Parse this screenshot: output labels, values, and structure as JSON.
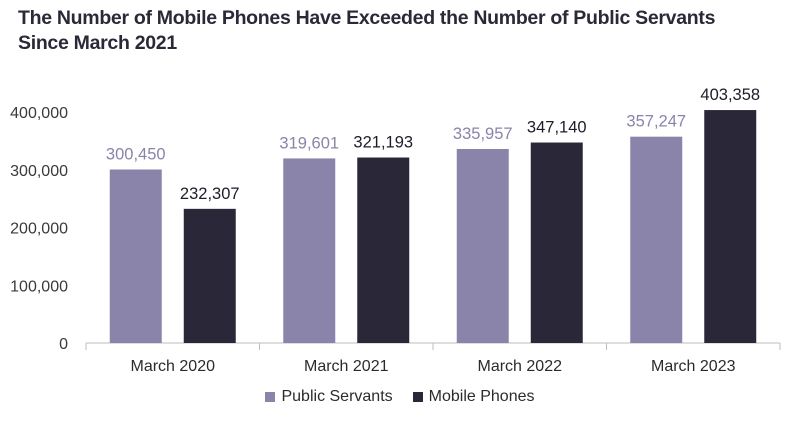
{
  "title": {
    "line1": "The Number of Mobile Phones Have Exceeded the Number of Public Servants",
    "line2": "Since March 2021"
  },
  "colors": {
    "public_servants": "#8a84aa",
    "mobile_phones": "#2a2838",
    "public_label": "#8a84aa",
    "mobile_label": "#1e1c28",
    "axis": "#bdbdbd"
  },
  "chart_data": {
    "type": "bar",
    "title": "The Number of Mobile Phones Have Exceeded the Number of Public Servants Since March 2021",
    "xlabel": "",
    "ylabel": "",
    "categories": [
      "March 2020",
      "March 2021",
      "March 2022",
      "March 2023"
    ],
    "series": [
      {
        "name": "Public Servants",
        "values": [
          300450,
          319601,
          335957,
          357247
        ]
      },
      {
        "name": "Mobile Phones",
        "values": [
          232307,
          321193,
          347140,
          403358
        ]
      }
    ],
    "ylim": [
      0,
      400000
    ],
    "yticks": [
      0,
      100000,
      200000,
      300000,
      400000
    ],
    "ytick_labels": [
      "0",
      "100,000",
      "200,000",
      "300,000",
      "400,000"
    ],
    "data_labels": [
      [
        "300,450",
        "319,601",
        "335,957",
        "357,247"
      ],
      [
        "232,307",
        "321,193",
        "347,140",
        "403,358"
      ]
    ],
    "grid": false,
    "legend": "bottom-center"
  }
}
